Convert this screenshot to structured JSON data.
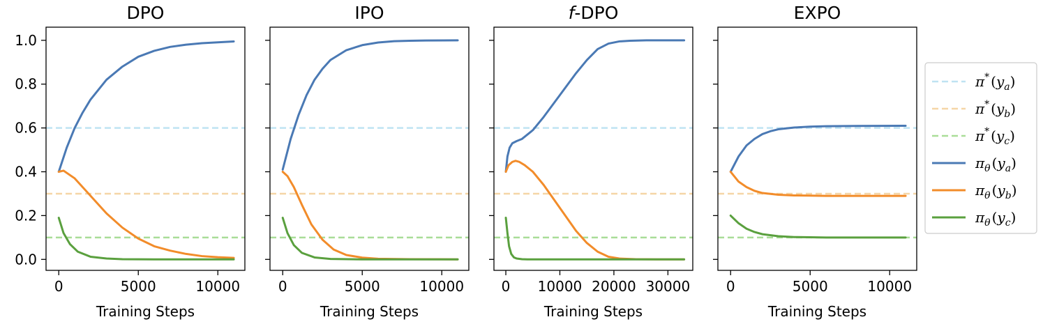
{
  "colors": {
    "pa_dashed": "#bfe3f2",
    "pb_dashed": "#f5d6a6",
    "pc_dashed": "#a9dd98",
    "ya": "#4a79b4",
    "yb": "#f28c2a",
    "yc": "#5aa03e"
  },
  "chart_data": [
    {
      "type": "line",
      "title": "DPO",
      "xlabel": "Training Steps",
      "ylabel": "",
      "xlim": [
        -800,
        11700
      ],
      "ylim": [
        -0.05,
        1.06
      ],
      "xticks": [
        0,
        5000,
        10000
      ],
      "xtick_labels": [
        "0",
        "5000",
        "10000"
      ],
      "yticks": [
        0.0,
        0.2,
        0.4,
        0.6,
        0.8,
        1.0
      ],
      "ytick_labels": [
        "0.0",
        "0.2",
        "0.4",
        "0.6",
        "0.8",
        "1.0"
      ],
      "hlines": [
        0.6,
        0.3,
        0.1
      ],
      "series": [
        {
          "name": "π_θ(y_a)",
          "x": [
            0,
            500,
            1000,
            1500,
            2000,
            3000,
            4000,
            5000,
            6000,
            7000,
            8000,
            9000,
            10000,
            11000
          ],
          "values": [
            0.4,
            0.51,
            0.6,
            0.67,
            0.73,
            0.82,
            0.88,
            0.925,
            0.952,
            0.97,
            0.98,
            0.987,
            0.991,
            0.995
          ]
        },
        {
          "name": "π_θ(y_b)",
          "x": [
            0,
            300,
            1000,
            2000,
            3000,
            4000,
            5000,
            6000,
            7000,
            8000,
            9000,
            10000,
            11000
          ],
          "values": [
            0.4,
            0.405,
            0.37,
            0.29,
            0.21,
            0.145,
            0.095,
            0.06,
            0.04,
            0.025,
            0.015,
            0.01,
            0.007
          ]
        },
        {
          "name": "π_θ(y_c)",
          "x": [
            0,
            300,
            700,
            1200,
            2000,
            3000,
            4000,
            6000,
            11000
          ],
          "values": [
            0.19,
            0.12,
            0.07,
            0.035,
            0.012,
            0.004,
            0.001,
            0.0,
            0.0
          ]
        }
      ]
    },
    {
      "type": "line",
      "title": "IPO",
      "xlabel": "Training Steps",
      "ylabel": "",
      "xlim": [
        -800,
        11700
      ],
      "ylim": [
        -0.05,
        1.06
      ],
      "xticks": [
        0,
        5000,
        10000
      ],
      "xtick_labels": [
        "0",
        "5000",
        "10000"
      ],
      "yticks": [
        0.0,
        0.2,
        0.4,
        0.6,
        0.8,
        1.0
      ],
      "ytick_labels": [],
      "hlines": [
        0.6,
        0.3,
        0.1
      ],
      "series": [
        {
          "name": "π_θ(y_a)",
          "x": [
            0,
            500,
            1000,
            1500,
            2000,
            2500,
            3000,
            4000,
            5000,
            6000,
            7000,
            8000,
            9000,
            11000
          ],
          "values": [
            0.41,
            0.55,
            0.66,
            0.75,
            0.82,
            0.87,
            0.91,
            0.955,
            0.978,
            0.99,
            0.996,
            0.998,
            0.999,
            1.0
          ]
        },
        {
          "name": "π_θ(y_b)",
          "x": [
            0,
            300,
            700,
            1200,
            1800,
            2500,
            3200,
            4000,
            5000,
            6000,
            8000,
            11000
          ],
          "values": [
            0.4,
            0.38,
            0.33,
            0.25,
            0.16,
            0.09,
            0.045,
            0.02,
            0.008,
            0.003,
            0.001,
            0.0
          ]
        },
        {
          "name": "π_θ(y_c)",
          "x": [
            0,
            300,
            700,
            1200,
            2000,
            3000,
            5000,
            11000
          ],
          "values": [
            0.19,
            0.12,
            0.065,
            0.03,
            0.009,
            0.002,
            0.0,
            0.0
          ]
        }
      ]
    },
    {
      "type": "line",
      "title": "f-DPO",
      "xlabel": "Training Steps",
      "ylabel": "",
      "xlim": [
        -2200,
        34600
      ],
      "ylim": [
        -0.05,
        1.06
      ],
      "xticks": [
        0,
        10000,
        20000,
        30000
      ],
      "xtick_labels": [
        "0",
        "10000",
        "20000",
        "30000"
      ],
      "yticks": [
        0.0,
        0.2,
        0.4,
        0.6,
        0.8,
        1.0
      ],
      "ytick_labels": [],
      "hlines": [
        0.6,
        0.3,
        0.1
      ],
      "series": [
        {
          "name": "π_θ(y_a)",
          "x": [
            0,
            300,
            700,
            1200,
            2000,
            3000,
            5000,
            7000,
            10000,
            13000,
            15000,
            17000,
            19000,
            21000,
            23000,
            26000,
            30000,
            33000
          ],
          "values": [
            0.4,
            0.47,
            0.51,
            0.53,
            0.54,
            0.55,
            0.59,
            0.65,
            0.75,
            0.85,
            0.91,
            0.96,
            0.985,
            0.995,
            0.998,
            1.0,
            1.0,
            1.0
          ]
        },
        {
          "name": "π_θ(y_b)",
          "x": [
            0,
            500,
            1200,
            1800,
            2500,
            3500,
            5000,
            7000,
            9000,
            11000,
            13000,
            15000,
            17000,
            19000,
            21000,
            24000,
            28000,
            33000
          ],
          "values": [
            0.4,
            0.43,
            0.445,
            0.45,
            0.445,
            0.43,
            0.4,
            0.34,
            0.27,
            0.2,
            0.13,
            0.075,
            0.035,
            0.012,
            0.004,
            0.001,
            0.0,
            0.0
          ]
        },
        {
          "name": "π_θ(y_c)",
          "x": [
            0,
            300,
            600,
            1000,
            1500,
            2000,
            3000,
            4000,
            6000,
            33000
          ],
          "values": [
            0.19,
            0.12,
            0.06,
            0.025,
            0.009,
            0.004,
            0.001,
            0.0,
            0.0,
            0.0
          ]
        }
      ]
    },
    {
      "type": "line",
      "title": "EXPO",
      "xlabel": "Training Steps",
      "ylabel": "",
      "xlim": [
        -800,
        11700
      ],
      "ylim": [
        -0.05,
        1.06
      ],
      "xticks": [
        0,
        5000,
        10000
      ],
      "xtick_labels": [
        "0",
        "5000",
        "10000"
      ],
      "yticks": [
        0.0,
        0.2,
        0.4,
        0.6,
        0.8,
        1.0
      ],
      "ytick_labels": [],
      "hlines": [
        0.6,
        0.3,
        0.1
      ],
      "series": [
        {
          "name": "π_θ(y_a)",
          "x": [
            0,
            500,
            1000,
            1500,
            2000,
            2500,
            3000,
            4000,
            5000,
            6000,
            8000,
            11000
          ],
          "values": [
            0.4,
            0.47,
            0.52,
            0.55,
            0.572,
            0.585,
            0.594,
            0.602,
            0.606,
            0.608,
            0.609,
            0.61
          ]
        },
        {
          "name": "π_θ(y_b)",
          "x": [
            0,
            500,
            1000,
            1500,
            2000,
            3000,
            4000,
            5000,
            6000,
            8000,
            11000
          ],
          "values": [
            0.4,
            0.355,
            0.33,
            0.313,
            0.303,
            0.295,
            0.292,
            0.291,
            0.29,
            0.29,
            0.29
          ]
        },
        {
          "name": "π_θ(y_c)",
          "x": [
            0,
            500,
            1000,
            1500,
            2000,
            3000,
            4000,
            5000,
            6000,
            8000,
            11000
          ],
          "values": [
            0.2,
            0.165,
            0.14,
            0.125,
            0.115,
            0.106,
            0.102,
            0.101,
            0.1,
            0.1,
            0.1
          ]
        }
      ]
    }
  ],
  "legend": {
    "placement": "right",
    "entries": [
      {
        "name": "pi-star-ya",
        "sym": "π",
        "sup": "*",
        "arg": "y",
        "sub": "a",
        "style": "dashed",
        "color_key": "pa_dashed"
      },
      {
        "name": "pi-star-yb",
        "sym": "π",
        "sup": "*",
        "arg": "y",
        "sub": "b",
        "style": "dashed",
        "color_key": "pb_dashed"
      },
      {
        "name": "pi-star-yc",
        "sym": "π",
        "sup": "*",
        "arg": "y",
        "sub": "c",
        "style": "dashed",
        "color_key": "pc_dashed"
      },
      {
        "name": "pi-theta-ya",
        "sym": "π",
        "sub0": "θ",
        "arg": "y",
        "sub": "a",
        "style": "solid",
        "color_key": "ya"
      },
      {
        "name": "pi-theta-yb",
        "sym": "π",
        "sub0": "θ",
        "arg": "y",
        "sub": "b",
        "style": "solid",
        "color_key": "yb"
      },
      {
        "name": "pi-theta-yc",
        "sym": "π",
        "sub0": "θ",
        "arg": "y",
        "sub": "c",
        "style": "solid",
        "color_key": "yc"
      }
    ]
  }
}
